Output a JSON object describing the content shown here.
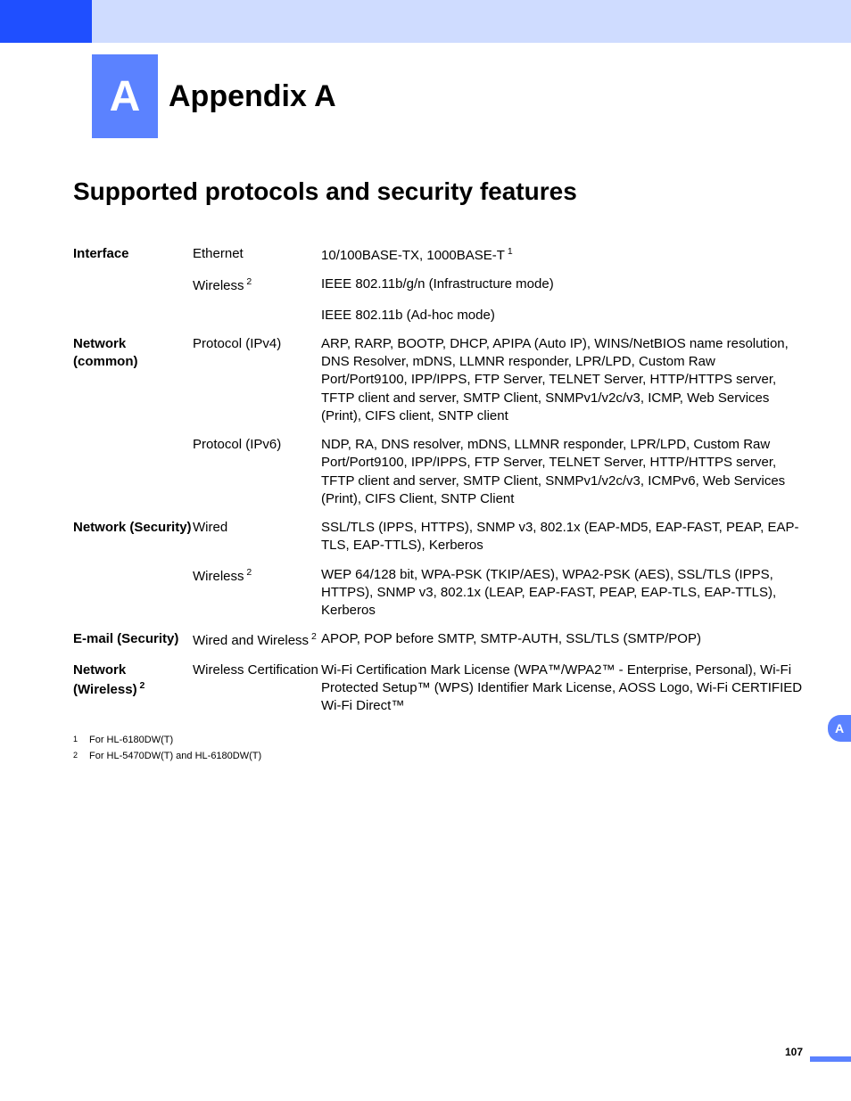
{
  "header": {
    "badge_letter": "A",
    "title": "Appendix A"
  },
  "section_heading": "Supported protocols and security features",
  "table": {
    "rows": [
      {
        "category": "Interface",
        "subcategory": "Ethernet",
        "value": "10/100BASE-TX, 1000BASE-T",
        "value_sup": "1"
      },
      {
        "category": "",
        "subcategory": "Wireless",
        "sub_sup": "2",
        "value": "IEEE 802.11b/g/n (Infrastructure mode)"
      },
      {
        "category": "",
        "subcategory": "",
        "value": "IEEE 802.11b (Ad-hoc mode)"
      },
      {
        "category": "Network (common)",
        "subcategory": "Protocol (IPv4)",
        "value": "ARP, RARP, BOOTP, DHCP, APIPA (Auto IP), WINS/NetBIOS name resolution, DNS Resolver, mDNS, LLMNR responder, LPR/LPD, Custom Raw Port/Port9100, IPP/IPPS, FTP Server, TELNET Server, HTTP/HTTPS server, TFTP client and server, SMTP Client, SNMPv1/v2c/v3, ICMP, Web Services (Print), CIFS client, SNTP client"
      },
      {
        "category": "",
        "subcategory": "Protocol (IPv6)",
        "value": "NDP, RA, DNS resolver, mDNS, LLMNR responder, LPR/LPD, Custom Raw Port/Port9100, IPP/IPPS, FTP Server, TELNET Server, HTTP/HTTPS server, TFTP client and server, SMTP Client, SNMPv1/v2c/v3, ICMPv6, Web Services (Print), CIFS Client, SNTP Client"
      },
      {
        "category": "Network (Security)",
        "subcategory": "Wired",
        "value": "SSL/TLS (IPPS, HTTPS), SNMP v3, 802.1x (EAP-MD5, EAP-FAST, PEAP, EAP-TLS, EAP-TTLS), Kerberos"
      },
      {
        "category": "",
        "subcategory": "Wireless",
        "sub_sup": "2",
        "value": "WEP 64/128 bit, WPA-PSK (TKIP/AES), WPA2-PSK (AES), SSL/TLS (IPPS, HTTPS), SNMP v3, 802.1x (LEAP, EAP-FAST, PEAP, EAP-TLS, EAP-TTLS), Kerberos"
      },
      {
        "category": "E-mail (Security)",
        "subcategory": "Wired and Wireless",
        "sub_sup": "2",
        "value": "APOP, POP before SMTP, SMTP-AUTH, SSL/TLS (SMTP/POP)"
      },
      {
        "category": "Network (Wireless)",
        "cat_sup": "2",
        "subcategory": "Wireless Certification",
        "value": "Wi-Fi Certification Mark License (WPA™/WPA2™ - Enterprise, Personal), Wi-Fi Protected Setup™ (WPS) Identifier Mark License, AOSS Logo, Wi-Fi CERTIFIED Wi-Fi Direct™"
      }
    ]
  },
  "footnotes": [
    {
      "num": "1",
      "text": "For HL-6180DW(T)"
    },
    {
      "num": "2",
      "text": "For HL-5470DW(T) and HL-6180DW(T)"
    }
  ],
  "side_tab": "A",
  "page_number": "107",
  "colors": {
    "header_blue": "#1f4fff",
    "header_light": "#cfdcff",
    "accent_blue": "#5b82ff",
    "text": "#000000",
    "background": "#ffffff"
  },
  "typography": {
    "title_fontsize": 34,
    "section_fontsize": 28,
    "body_fontsize": 15,
    "footnote_fontsize": 11,
    "badge_fontsize": 48,
    "font_family": "Arial"
  }
}
